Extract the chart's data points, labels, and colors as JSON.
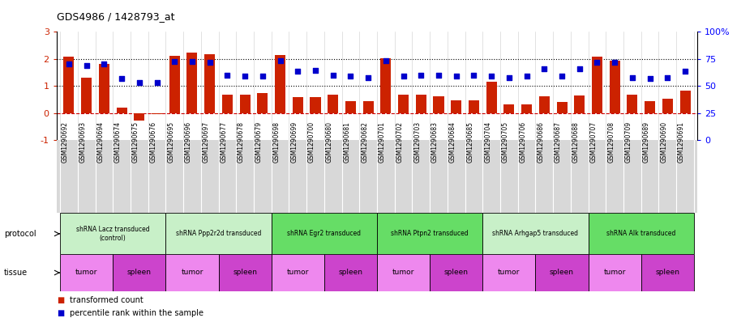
{
  "title": "GDS4986 / 1428793_at",
  "samples": [
    "GSM1290692",
    "GSM1290693",
    "GSM1290694",
    "GSM1290674",
    "GSM1290675",
    "GSM1290676",
    "GSM1290695",
    "GSM1290696",
    "GSM1290697",
    "GSM1290677",
    "GSM1290678",
    "GSM1290679",
    "GSM1290698",
    "GSM1290699",
    "GSM1290700",
    "GSM1290680",
    "GSM1290681",
    "GSM1290682",
    "GSM1290701",
    "GSM1290702",
    "GSM1290703",
    "GSM1290683",
    "GSM1290684",
    "GSM1290685",
    "GSM1290704",
    "GSM1290705",
    "GSM1290706",
    "GSM1290686",
    "GSM1290687",
    "GSM1290688",
    "GSM1290707",
    "GSM1290708",
    "GSM1290709",
    "GSM1290689",
    "GSM1290690",
    "GSM1290691"
  ],
  "red_values": [
    2.07,
    1.29,
    1.8,
    0.19,
    -0.28,
    -0.04,
    2.12,
    2.22,
    2.16,
    0.68,
    0.68,
    0.72,
    2.14,
    0.58,
    0.58,
    0.68,
    0.42,
    0.42,
    2.01,
    0.68,
    0.68,
    0.62,
    0.45,
    0.45,
    1.14,
    0.3,
    0.3,
    0.62,
    0.4,
    0.65,
    2.08,
    1.93,
    0.68,
    0.42,
    0.52,
    0.82
  ],
  "blue_values": [
    1.82,
    1.75,
    1.8,
    1.27,
    1.13,
    1.13,
    1.9,
    1.9,
    1.88,
    1.4,
    1.35,
    1.35,
    1.92,
    1.53,
    1.58,
    1.38,
    1.35,
    1.3,
    1.92,
    1.35,
    1.38,
    1.38,
    1.35,
    1.4,
    1.35,
    1.3,
    1.35,
    1.62,
    1.35,
    1.62,
    1.88,
    1.88,
    1.3,
    1.28,
    1.3,
    1.55
  ],
  "protocols": [
    {
      "label": "shRNA Lacz transduced\n(control)",
      "start": 0,
      "end": 6,
      "color": "#C8F0C8"
    },
    {
      "label": "shRNA Ppp2r2d transduced",
      "start": 6,
      "end": 12,
      "color": "#C8F0C8"
    },
    {
      "label": "shRNA Egr2 transduced",
      "start": 12,
      "end": 18,
      "color": "#66DD66"
    },
    {
      "label": "shRNA Ptpn2 transduced",
      "start": 18,
      "end": 24,
      "color": "#66DD66"
    },
    {
      "label": "shRNA Arhgap5 transduced",
      "start": 24,
      "end": 30,
      "color": "#C8F0C8"
    },
    {
      "label": "shRNA Alk transduced",
      "start": 30,
      "end": 36,
      "color": "#66DD66"
    }
  ],
  "tissues": [
    {
      "label": "tumor",
      "start": 0,
      "end": 3,
      "color": "#EE88EE"
    },
    {
      "label": "spleen",
      "start": 3,
      "end": 6,
      "color": "#CC44CC"
    },
    {
      "label": "tumor",
      "start": 6,
      "end": 9,
      "color": "#EE88EE"
    },
    {
      "label": "spleen",
      "start": 9,
      "end": 12,
      "color": "#CC44CC"
    },
    {
      "label": "tumor",
      "start": 12,
      "end": 15,
      "color": "#EE88EE"
    },
    {
      "label": "spleen",
      "start": 15,
      "end": 18,
      "color": "#CC44CC"
    },
    {
      "label": "tumor",
      "start": 18,
      "end": 21,
      "color": "#EE88EE"
    },
    {
      "label": "spleen",
      "start": 21,
      "end": 24,
      "color": "#CC44CC"
    },
    {
      "label": "tumor",
      "start": 24,
      "end": 27,
      "color": "#EE88EE"
    },
    {
      "label": "spleen",
      "start": 27,
      "end": 30,
      "color": "#CC44CC"
    },
    {
      "label": "tumor",
      "start": 30,
      "end": 33,
      "color": "#EE88EE"
    },
    {
      "label": "spleen",
      "start": 33,
      "end": 36,
      "color": "#CC44CC"
    }
  ],
  "ylim_left": [
    -1,
    3
  ],
  "ylim_right": [
    0,
    100
  ],
  "yticks_left": [
    -1,
    0,
    1,
    2,
    3
  ],
  "yticks_right": [
    0,
    25,
    50,
    75,
    100
  ],
  "ytick_labels_right": [
    "0",
    "25",
    "50",
    "75",
    "100%"
  ],
  "red_color": "#CC2200",
  "blue_color": "#0000CC",
  "bg_color": "#FFFFFF",
  "label_bg": "#D8D8D8",
  "legend_red": "transformed count",
  "legend_blue": "percentile rank within the sample"
}
